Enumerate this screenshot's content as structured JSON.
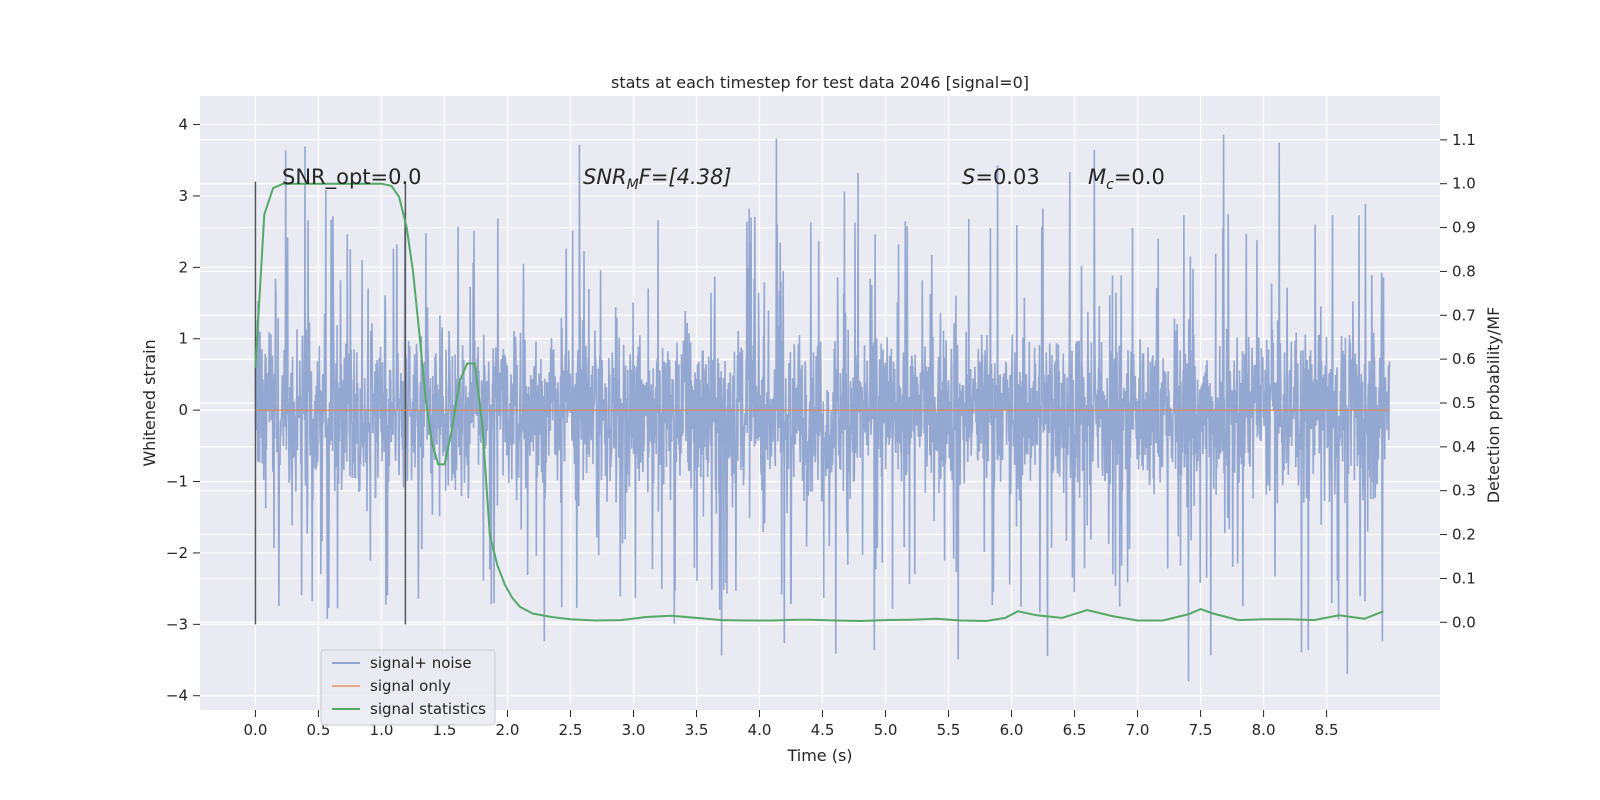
{
  "chart_data": {
    "type": "line",
    "title": "stats at each timestep for test data 2046 [signal=0]",
    "xlabel": "Time (s)",
    "ylabel": "Whitened strain",
    "y2label": "Detection probability/MF",
    "xlim": [
      -0.44,
      9.4
    ],
    "ylim": [
      -4.2,
      4.4
    ],
    "y2lim": [
      -0.2,
      1.2
    ],
    "xticks": [
      "0.0",
      "0.5",
      "1.0",
      "1.5",
      "2.0",
      "2.5",
      "3.0",
      "3.5",
      "4.0",
      "4.5",
      "5.0",
      "5.5",
      "6.0",
      "6.5",
      "7.0",
      "7.5",
      "8.0",
      "8.5"
    ],
    "yticks": [
      "4",
      "3",
      "2",
      "1",
      "0",
      "−1",
      "−2",
      "−3",
      "−4"
    ],
    "y2ticks": [
      "1.1",
      "1.0",
      "0.9",
      "0.8",
      "0.7",
      "0.6",
      "0.5",
      "0.4",
      "0.3",
      "0.2",
      "0.1",
      "0.0"
    ],
    "markers": [
      0.0,
      1.19
    ],
    "annotations": {
      "snr_opt": "SNR_opt=0.0",
      "snr_mf_sym": "SNR",
      "snr_mf_sub": "M",
      "snr_mf_rest": "F=[4.38]",
      "s_sym": "S",
      "s_val": "=0.03",
      "mc_sym": "M",
      "mc_sub": "c",
      "mc_val": "=0.0"
    },
    "series": [
      {
        "name": "signal+ noise",
        "color": "#8fa3cf",
        "description": "noisy whitened strain, roughly within -1.5..1.5 with spikes to about 4.0 and -3.8",
        "duration": 9.0
      },
      {
        "name": "signal only",
        "color": "#dd8452",
        "values_constant": 0.0
      },
      {
        "name": "signal statistics",
        "color": "#55a868",
        "axis": "right",
        "x": [
          0.0,
          0.07,
          0.14,
          0.22,
          0.3,
          0.4,
          0.5,
          0.6,
          0.7,
          0.8,
          0.9,
          1.0,
          1.08,
          1.14,
          1.2,
          1.25,
          1.3,
          1.35,
          1.4,
          1.45,
          1.5,
          1.56,
          1.62,
          1.68,
          1.74,
          1.8,
          1.86,
          1.92,
          1.98,
          2.04,
          2.1,
          2.2,
          2.35,
          2.5,
          2.7,
          2.9,
          3.1,
          3.3,
          3.5,
          3.7,
          3.9,
          4.1,
          4.3,
          4.4,
          4.6,
          4.8,
          5.0,
          5.2,
          5.4,
          5.6,
          5.8,
          5.95,
          6.05,
          6.2,
          6.4,
          6.6,
          6.8,
          7.0,
          7.2,
          7.4,
          7.5,
          7.6,
          7.8,
          8.0,
          8.2,
          8.4,
          8.6,
          8.8,
          8.95
        ],
        "y": [
          0.58,
          0.93,
          0.99,
          1.0,
          1.0,
          1.0,
          1.0,
          1.0,
          1.0,
          1.0,
          1.0,
          1.0,
          0.995,
          0.97,
          0.9,
          0.8,
          0.66,
          0.51,
          0.41,
          0.36,
          0.36,
          0.44,
          0.55,
          0.59,
          0.59,
          0.45,
          0.2,
          0.13,
          0.085,
          0.055,
          0.035,
          0.02,
          0.012,
          0.007,
          0.004,
          0.005,
          0.012,
          0.015,
          0.01,
          0.005,
          0.004,
          0.004,
          0.006,
          0.006,
          0.004,
          0.003,
          0.005,
          0.006,
          0.008,
          0.004,
          0.003,
          0.01,
          0.025,
          0.016,
          0.01,
          0.028,
          0.014,
          0.004,
          0.004,
          0.018,
          0.03,
          0.02,
          0.005,
          0.007,
          0.007,
          0.005,
          0.016,
          0.008,
          0.025
        ]
      }
    ],
    "legend": {
      "position": "lower-left",
      "entries": [
        "signal+ noise",
        "signal only",
        "signal statistics"
      ]
    }
  }
}
